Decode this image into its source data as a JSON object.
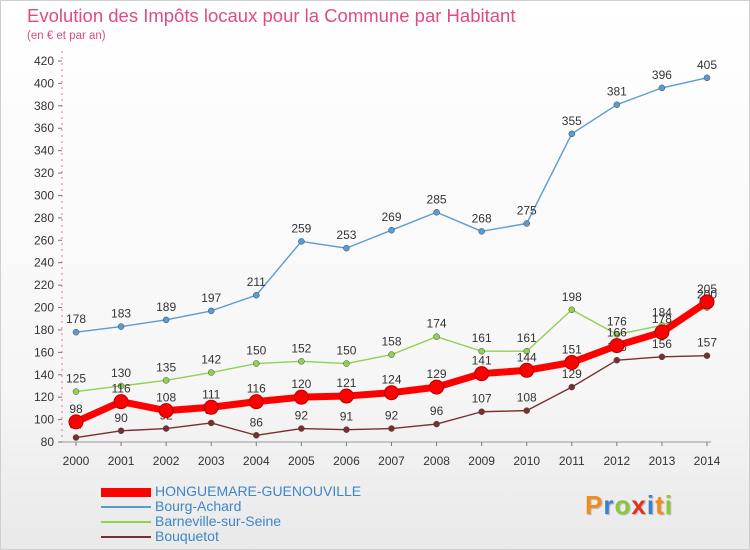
{
  "title": "Evolution des Impôts locaux pour la Commune par Habitant",
  "subtitle": "(en € et par an)",
  "logo": {
    "letters": [
      "P",
      "r",
      "o",
      "x",
      "i",
      "t",
      "i"
    ],
    "colors": [
      "#f08c1c",
      "#3a7fd0",
      "#8cc63f",
      "#e0321e",
      "#3a7fd0",
      "#f08c1c",
      "#8cc63f"
    ]
  },
  "chart_data": {
    "type": "line",
    "title": "Evolution des Impôts locaux pour la Commune par Habitant",
    "subtitle": "(en € et par an)",
    "categories": [
      "2000",
      "2001",
      "2002",
      "2003",
      "2004",
      "2005",
      "2006",
      "2007",
      "2008",
      "2009",
      "2010",
      "2011",
      "2012",
      "2013",
      "2014"
    ],
    "ylim": [
      80,
      420
    ],
    "yticks": [
      80,
      100,
      120,
      140,
      160,
      180,
      200,
      220,
      240,
      260,
      280,
      300,
      320,
      340,
      360,
      380,
      400,
      420
    ],
    "grid": false,
    "legend_position": "bottom-left",
    "series": [
      {
        "name": "Bourg-Achard",
        "color": "#5a9bd5",
        "values": [
          178,
          183,
          189,
          197,
          211,
          259,
          253,
          269,
          285,
          268,
          275,
          355,
          381,
          396,
          405
        ]
      },
      {
        "name": "Barneville-sur-Seine",
        "color": "#92d050",
        "values": [
          125,
          130,
          135,
          142,
          150,
          152,
          150,
          158,
          174,
          161,
          161,
          198,
          176,
          184,
          200
        ]
      },
      {
        "name": "Bouquetot",
        "color": "#7b2e2e",
        "values": [
          84,
          90,
          92,
          97,
          86,
          92,
          91,
          92,
          96,
          107,
          108,
          129,
          153,
          156,
          157
        ]
      },
      {
        "name": "HONGUEMARE-GUENOUVILLE",
        "color": "#ff0000",
        "values": [
          98,
          116,
          108,
          111,
          116,
          120,
          121,
          124,
          129,
          141,
          144,
          151,
          166,
          178,
          205
        ]
      }
    ],
    "legend": [
      "HONGUEMARE-GUENOUVILLE",
      "Bourg-Achard",
      "Barneville-sur-Seine",
      "Bouquetot"
    ]
  }
}
